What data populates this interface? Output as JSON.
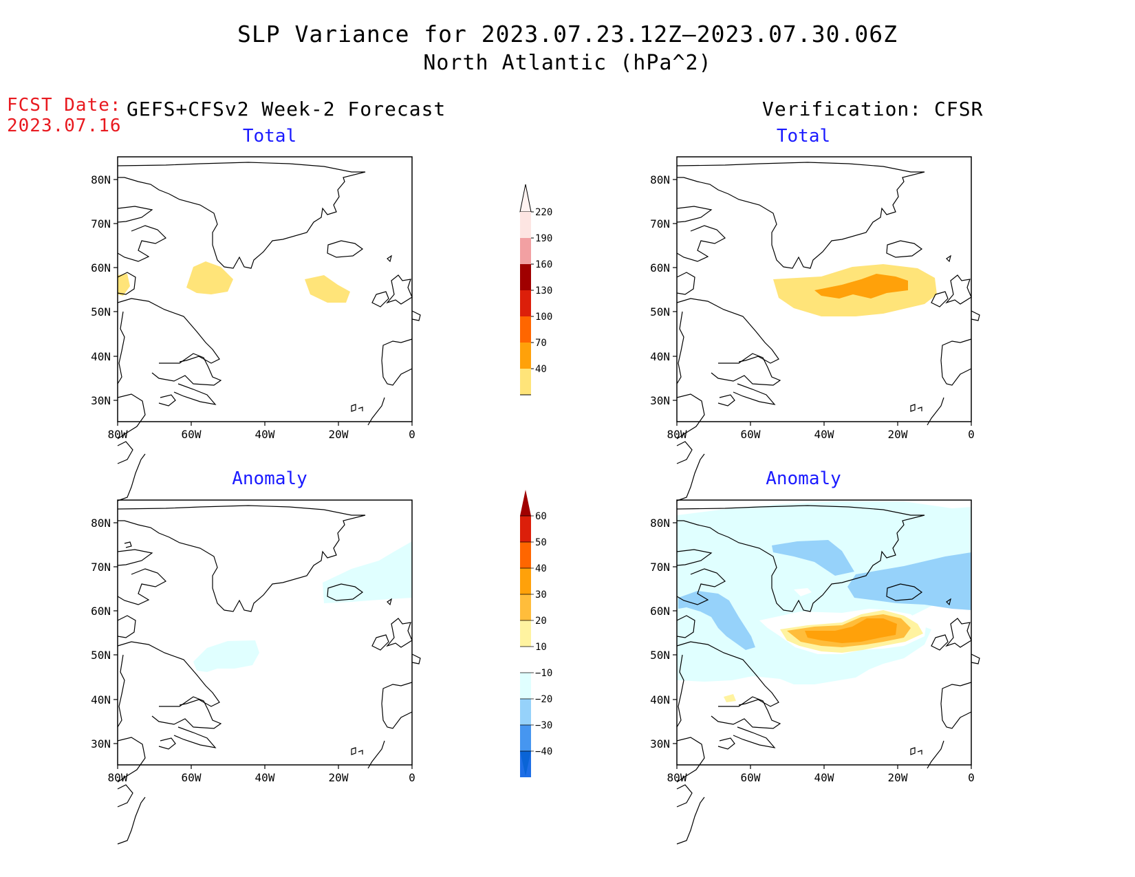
{
  "header": {
    "title": "SLP Variance for 2023.07.23.12Z—2023.07.30.06Z",
    "subtitle": "North Atlantic (hPa^2)",
    "fcst_label": "FCST Date:",
    "fcst_date": "2023.07.16",
    "left_column_title": "GEFS+CFSv2 Week-2 Forecast",
    "right_column_title": "Verification: CFSR"
  },
  "panels": {
    "total_label": "Total",
    "anomaly_label": "Anomaly",
    "lat_ticks": [
      "80N",
      "70N",
      "60N",
      "50N",
      "40N",
      "30N"
    ],
    "lon_ticks": [
      "80W",
      "60W",
      "40W",
      "20W",
      "0"
    ]
  },
  "colorbars": {
    "total": {
      "labels": [
        "220",
        "190",
        "160",
        "130",
        "100",
        "70",
        "40"
      ],
      "colors": [
        "#fde5e2",
        "#f2a0a2",
        "#a00000",
        "#dc1f0a",
        "#ff6600",
        "#ffa10a",
        "#ffe479"
      ]
    },
    "anomaly": {
      "labels": [
        "60",
        "50",
        "40",
        "30",
        "20",
        "10",
        "−10",
        "−20",
        "−30",
        "−40"
      ],
      "top_color": "#a00000",
      "bottom_color": "#0a64d6",
      "colors": [
        "#dc1f0a",
        "#ff6600",
        "#ffa10a",
        "#ffbd3b",
        "#fff3a0",
        "#ffffff",
        "#e0ffff",
        "#96d2fa",
        "#4696f0",
        "#1e6ee6"
      ]
    }
  },
  "colors": {
    "text_blue": "#1a1aff",
    "fcst_red": "#e8191f",
    "yellow_40": "#ffe479",
    "orange_70": "#ffa10a",
    "anom_lightblue": "#e0ffff",
    "anom_blue": "#96d2fa",
    "anom_yellow": "#fff3a0",
    "anom_lightorange": "#ffbd3b",
    "anom_orange": "#ffa10a"
  }
}
